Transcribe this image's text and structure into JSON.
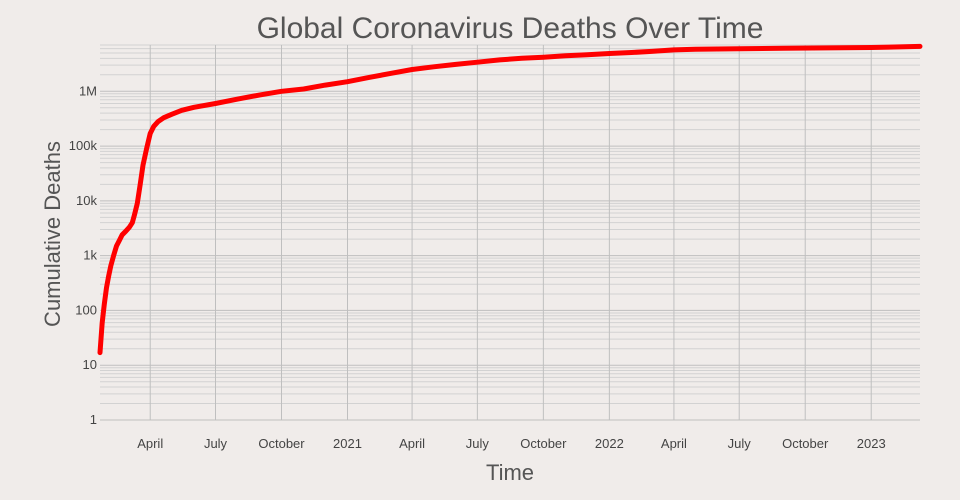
{
  "chart_data": {
    "type": "line",
    "title": "Global Coronavirus Deaths Over Time",
    "xlabel": "Time",
    "ylabel": "Cumulative Deaths",
    "y_scale": "log",
    "ylim": [
      1,
      7000000
    ],
    "xlim": [
      "2020-01-22",
      "2023-03-10"
    ],
    "grid": true,
    "x_ticks": [
      {
        "date": "2020-04-01",
        "label": "April"
      },
      {
        "date": "2020-07-01",
        "label": "July"
      },
      {
        "date": "2020-10-01",
        "label": "October"
      },
      {
        "date": "2021-01-01",
        "label": "2021"
      },
      {
        "date": "2021-04-01",
        "label": "April"
      },
      {
        "date": "2021-07-01",
        "label": "July"
      },
      {
        "date": "2021-10-01",
        "label": "October"
      },
      {
        "date": "2022-01-01",
        "label": "2022"
      },
      {
        "date": "2022-04-01",
        "label": "April"
      },
      {
        "date": "2022-07-01",
        "label": "July"
      },
      {
        "date": "2022-10-01",
        "label": "October"
      },
      {
        "date": "2023-01-01",
        "label": "2023"
      }
    ],
    "y_ticks": [
      {
        "value": 1,
        "label": "1"
      },
      {
        "value": 10,
        "label": "10"
      },
      {
        "value": 100,
        "label": "100"
      },
      {
        "value": 1000,
        "label": "1k"
      },
      {
        "value": 10000,
        "label": "10k"
      },
      {
        "value": 100000,
        "label": "100k"
      },
      {
        "value": 1000000,
        "label": "1M"
      }
    ],
    "series": [
      {
        "color": "#ff0000",
        "x": [
          "2020-01-22",
          "2020-01-25",
          "2020-01-28",
          "2020-01-31",
          "2020-02-03",
          "2020-02-06",
          "2020-02-10",
          "2020-02-14",
          "2020-02-18",
          "2020-02-22",
          "2020-02-27",
          "2020-03-03",
          "2020-03-07",
          "2020-03-10",
          "2020-03-14",
          "2020-03-18",
          "2020-03-22",
          "2020-03-27",
          "2020-04-01",
          "2020-04-06",
          "2020-04-12",
          "2020-04-20",
          "2020-05-01",
          "2020-05-15",
          "2020-06-01",
          "2020-07-01",
          "2020-08-01",
          "2020-09-01",
          "2020-10-01",
          "2020-11-01",
          "2020-12-01",
          "2021-01-01",
          "2021-02-01",
          "2021-03-01",
          "2021-04-01",
          "2021-05-01",
          "2021-06-01",
          "2021-07-01",
          "2021-08-01",
          "2021-09-01",
          "2021-10-01",
          "2021-11-01",
          "2021-12-01",
          "2022-01-01",
          "2022-02-01",
          "2022-03-01",
          "2022-04-01",
          "2022-05-01",
          "2022-07-01",
          "2022-09-01",
          "2022-11-01",
          "2023-01-01",
          "2023-03-10"
        ],
        "values": [
          17,
          60,
          130,
          260,
          420,
          650,
          1000,
          1500,
          1900,
          2400,
          2800,
          3300,
          4000,
          5500,
          9000,
          20000,
          45000,
          90000,
          170000,
          230000,
          280000,
          330000,
          380000,
          450000,
          510000,
          600000,
          720000,
          860000,
          1000000,
          1100000,
          1300000,
          1500000,
          1800000,
          2100000,
          2500000,
          2800000,
          3100000,
          3400000,
          3750000,
          4000000,
          4200000,
          4450000,
          4650000,
          4900000,
          5100000,
          5350000,
          5700000,
          5850000,
          6000000,
          6100000,
          6200000,
          6300000,
          6600000
        ]
      }
    ]
  }
}
